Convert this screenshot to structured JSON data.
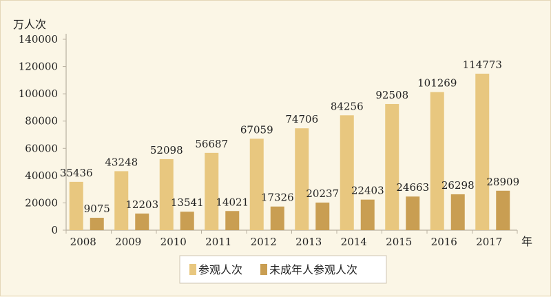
{
  "chart_data": {
    "type": "bar",
    "categories": [
      "2008",
      "2009",
      "2010",
      "2011",
      "2012",
      "2013",
      "2014",
      "2015",
      "2016",
      "2017"
    ],
    "series": [
      {
        "name": "参观人次",
        "values": [
          35436,
          43248,
          52098,
          56687,
          67059,
          74706,
          84256,
          92508,
          101269,
          114773
        ],
        "color": "#e8c77f"
      },
      {
        "name": "未成年人参观人次",
        "values": [
          9075,
          12203,
          13541,
          14021,
          17326,
          20237,
          22403,
          24663,
          26298,
          28909
        ],
        "color": "#c99e52"
      }
    ],
    "ylabel": "万人次",
    "xlabel": "年",
    "ylim": [
      0,
      140000
    ],
    "yticks": [
      0,
      20000,
      40000,
      60000,
      80000,
      100000,
      120000,
      140000
    ],
    "grid": false,
    "legend": "bottom-center"
  }
}
